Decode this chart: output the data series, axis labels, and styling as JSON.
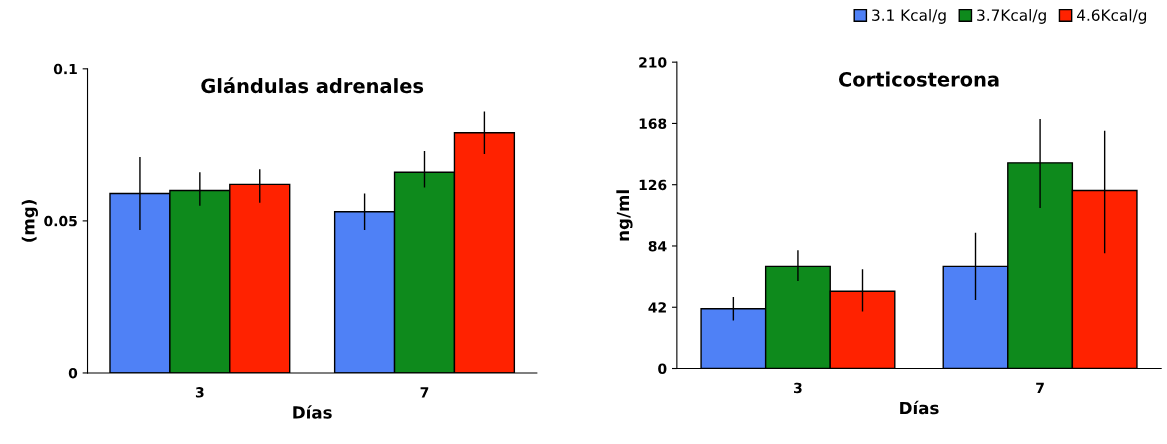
{
  "chart_data": [
    {
      "type": "bar",
      "title": "Glándulas adrenales",
      "xlabel": "Días",
      "ylabel": "(mg)",
      "categories": [
        "3",
        "7"
      ],
      "ylim": [
        0,
        0.1
      ],
      "yticks": [
        0,
        0.05,
        0.1
      ],
      "grid": false,
      "series": [
        {
          "color": "#4f81f6",
          "values": [
            0.059,
            0.053
          ],
          "errors": [
            [
              0.047,
              0.071
            ],
            [
              0.047,
              0.059
            ]
          ]
        },
        {
          "color": "#0e8a1c",
          "values": [
            0.06,
            0.066
          ],
          "errors": [
            [
              0.055,
              0.066
            ],
            [
              0.061,
              0.073
            ]
          ]
        },
        {
          "color": "#ff2200",
          "values": [
            0.062,
            0.079
          ],
          "errors": [
            [
              0.056,
              0.067
            ],
            [
              0.072,
              0.086
            ]
          ]
        }
      ]
    },
    {
      "type": "bar",
      "title": "Corticosterona",
      "xlabel": "Días",
      "ylabel": "ng/ml",
      "categories": [
        "3",
        "7"
      ],
      "ylim": [
        0,
        210
      ],
      "yticks": [
        0,
        42,
        84,
        126,
        168,
        210
      ],
      "grid": false,
      "legend": "top right",
      "series": [
        {
          "name": "3.1 Kcal/g",
          "color": "#4f81f6",
          "values": [
            41,
            70
          ],
          "errors": [
            [
              33,
              49
            ],
            [
              47,
              93
            ]
          ]
        },
        {
          "name": "3.7Kcal/g",
          "color": "#0e8a1c",
          "values": [
            70,
            141
          ],
          "errors": [
            [
              60,
              81
            ],
            [
              110,
              171
            ]
          ]
        },
        {
          "name": "4.6Kcal/g",
          "color": "#ff2200",
          "values": [
            53,
            122
          ],
          "errors": [
            [
              39,
              68
            ],
            [
              79,
              163
            ]
          ]
        }
      ]
    }
  ]
}
